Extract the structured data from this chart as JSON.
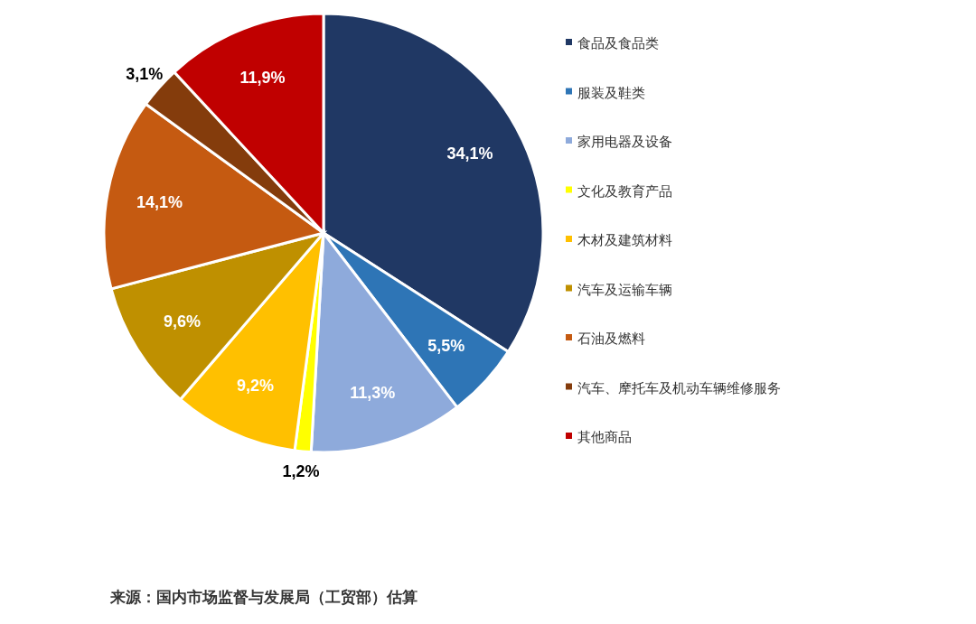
{
  "chart_data": {
    "type": "pie",
    "categories": [
      "食品及食品类",
      "服装及鞋类",
      "家用电器及设备",
      "文化及教育产品",
      "木材及建筑材料",
      "汽车及运输车辆",
      "石油及燃料",
      "汽车、摩托车及机动车辆维修服务",
      "其他商品"
    ],
    "values": [
      34.1,
      5.5,
      11.3,
      1.2,
      9.2,
      9.6,
      14.1,
      3.1,
      11.9
    ],
    "colors": [
      "#203864",
      "#2e75b6",
      "#8eaadb",
      "#ffff00",
      "#ffc000",
      "#bf9000",
      "#c55a11",
      "#843c0c",
      "#c00000"
    ],
    "value_labels": [
      "34,1%",
      "5,5%",
      "11,3%",
      "1,2%",
      "9,2%",
      "9,6%",
      "14,1%",
      "3,1%",
      "11,9%"
    ],
    "legend": "right",
    "annotations": [
      "来源：国内市场监督与发展局（工贸部）估算"
    ]
  }
}
